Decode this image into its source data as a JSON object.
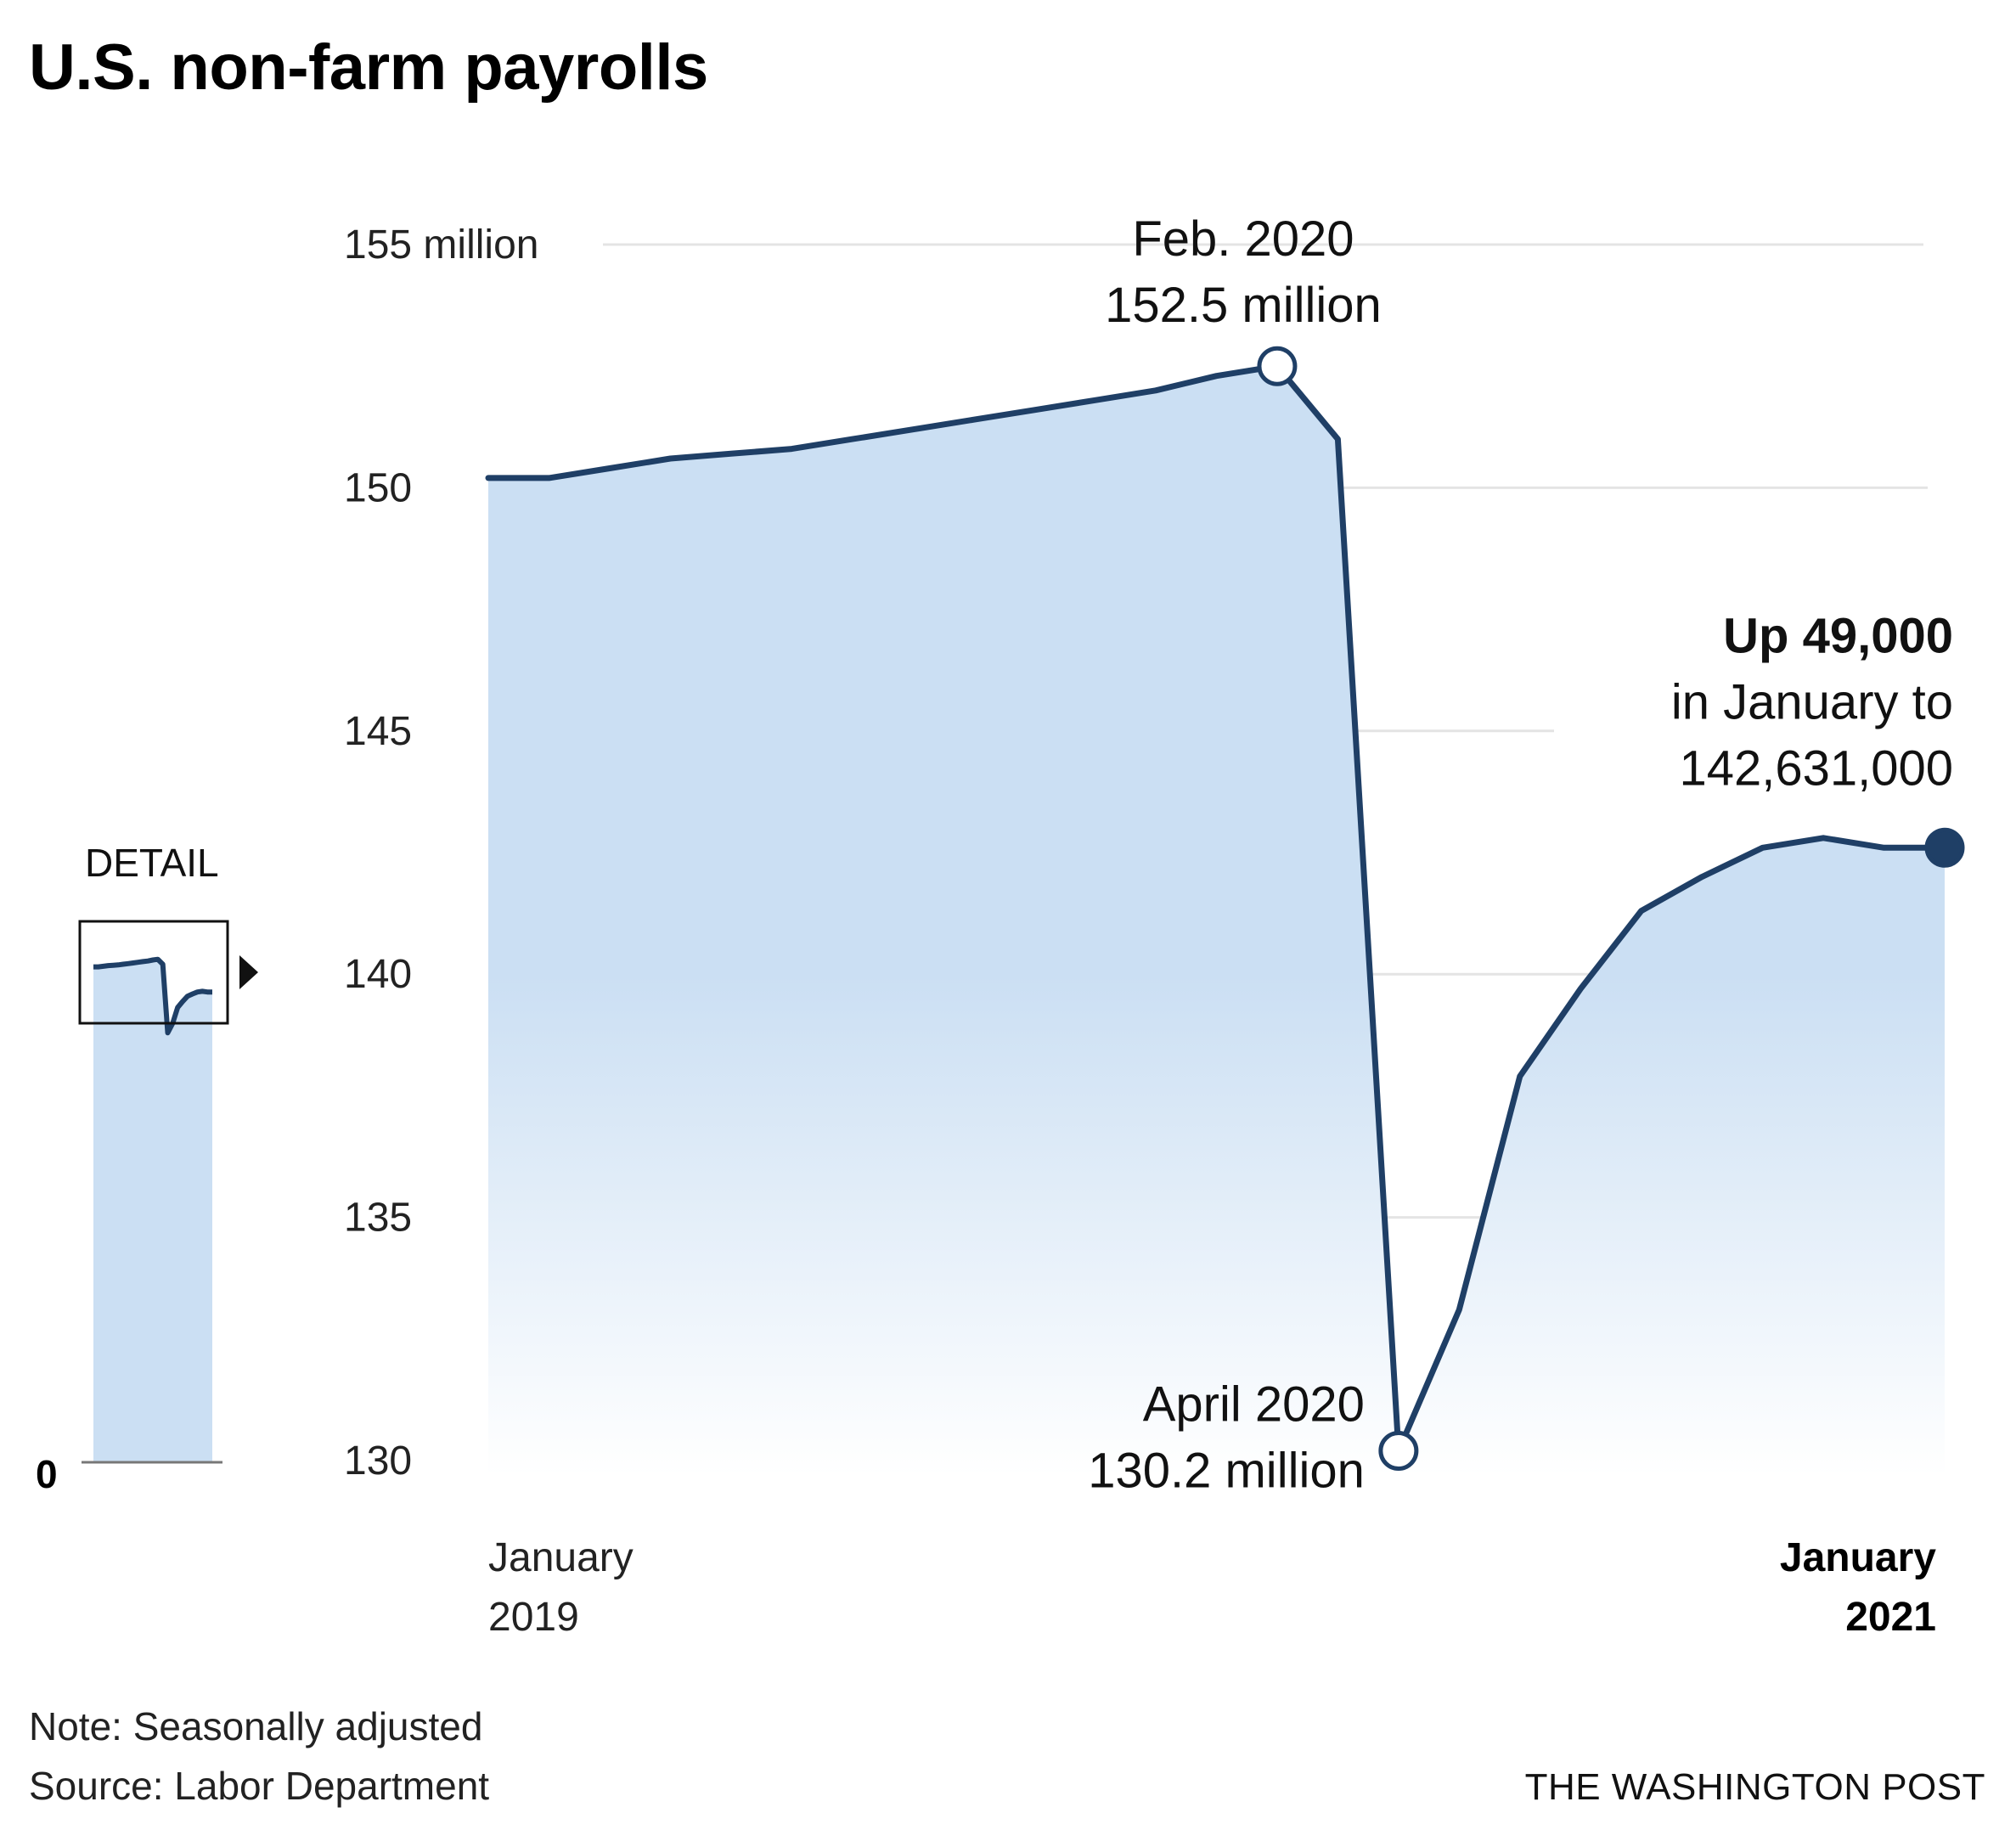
{
  "title": "U.S. non-farm payrolls",
  "note": "Note: Seasonally adjusted",
  "source": "Source: Labor Department",
  "credit": "THE WASHINGTON POST",
  "colors": {
    "line": "#1f3f66",
    "fill_top": "#cbdff3",
    "fill_bottom": "#ffffff",
    "grid": "#e4e4e4"
  },
  "chart_data": {
    "type": "area",
    "units": "million",
    "y_ticks": [
      {
        "value": 155,
        "label": "155 million"
      },
      {
        "value": 150,
        "label": "150"
      },
      {
        "value": 145,
        "label": "145"
      },
      {
        "value": 140,
        "label": "140"
      },
      {
        "value": 135,
        "label": "135"
      },
      {
        "value": 130,
        "label": "130"
      }
    ],
    "ylim": [
      130,
      155
    ],
    "x_labels": [
      {
        "lines": [
          "January",
          "2019"
        ],
        "bold": false,
        "anchor": "start"
      },
      {
        "lines": [
          "January",
          "2021"
        ],
        "bold": true,
        "anchor": "end"
      }
    ],
    "x": [
      "2019-01",
      "2019-02",
      "2019-03",
      "2019-04",
      "2019-05",
      "2019-06",
      "2019-07",
      "2019-08",
      "2019-09",
      "2019-10",
      "2019-11",
      "2019-12",
      "2020-01",
      "2020-02",
      "2020-03",
      "2020-04",
      "2020-05",
      "2020-06",
      "2020-07",
      "2020-08",
      "2020-09",
      "2020-10",
      "2020-11",
      "2020-12",
      "2021-01"
    ],
    "values": [
      150.2,
      150.2,
      150.4,
      150.6,
      150.7,
      150.8,
      151.0,
      151.2,
      151.4,
      151.6,
      151.8,
      152.0,
      152.3,
      152.5,
      151.0,
      130.2,
      133.1,
      137.9,
      139.7,
      141.3,
      142.0,
      142.6,
      142.8,
      142.6,
      142.6
    ],
    "annotations": [
      {
        "x": "2020-02",
        "lines": [
          "Feb. 2020",
          "152.5 million"
        ],
        "marker": "open"
      },
      {
        "x": "2020-04",
        "lines": [
          "April 2020",
          "130.2 million"
        ],
        "marker": "open"
      },
      {
        "x": "2021-01",
        "lines": [
          "Up 49,000",
          "in January to",
          "142,631,000"
        ],
        "bold_first": true,
        "marker": "filled"
      }
    ],
    "detail_inset": {
      "label": "DETAIL",
      "zero_label": "0"
    }
  }
}
